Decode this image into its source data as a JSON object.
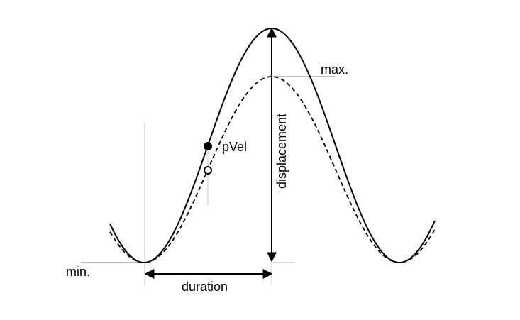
{
  "labels": {
    "max": "max.",
    "min": "min.",
    "pvel": "pVel",
    "displacement": "displacement",
    "duration": "duration"
  },
  "curves": {
    "solid": "reference-movement",
    "dashed": "comparison-movement"
  },
  "colors": {
    "stroke": "#000000",
    "guide": "#bdbdbd",
    "background": "#ffffff"
  }
}
